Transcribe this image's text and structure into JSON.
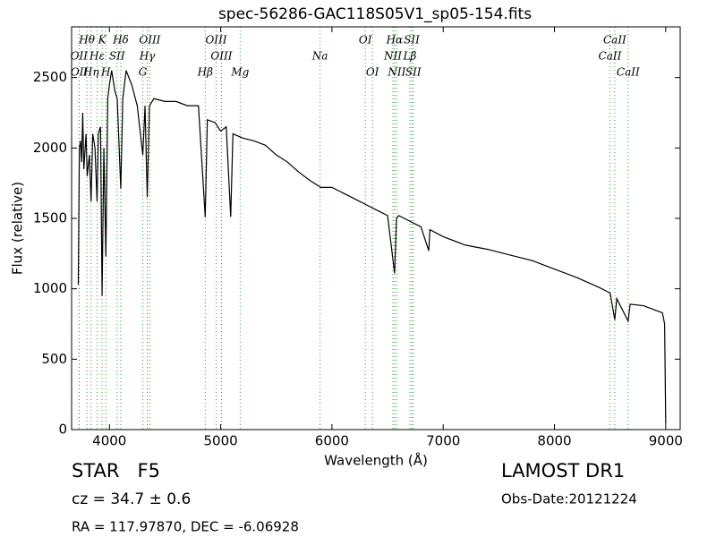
{
  "chart_data": {
    "type": "line",
    "title": "spec-56286-GAC118S05V1_sp05-154.fits",
    "x_label": "Wavelength (Å)",
    "y_label": "Flux (relative)",
    "xlim": [
      3660,
      9130
    ],
    "ylim": [
      0,
      2860
    ],
    "xticks": [
      4000,
      5000,
      6000,
      7000,
      8000,
      9000
    ],
    "yticks": [
      0,
      500,
      1000,
      1500,
      2000,
      2500
    ],
    "series": [
      {
        "name": "spectrum",
        "color": "#000000",
        "x": [
          3720,
          3730,
          3740,
          3750,
          3760,
          3770,
          3790,
          3800,
          3820,
          3835,
          3850,
          3870,
          3889,
          3900,
          3920,
          3934,
          3950,
          3968,
          3985,
          4000,
          4020,
          4050,
          4070,
          4102,
          4120,
          4150,
          4200,
          4250,
          4300,
          4320,
          4340,
          4360,
          4400,
          4500,
          4600,
          4700,
          4800,
          4861,
          4880,
          4950,
          5000,
          5050,
          5090,
          5110,
          5200,
          5300,
          5400,
          5500,
          5600,
          5700,
          5800,
          5900,
          6000,
          6100,
          6200,
          6300,
          6400,
          6500,
          6563,
          6580,
          6600,
          6700,
          6800,
          6870,
          6880,
          7000,
          7200,
          7400,
          7600,
          7800,
          8000,
          8200,
          8400,
          8500,
          8542,
          8560,
          8662,
          8680,
          8800,
          8900,
          8970,
          8990,
          9000
        ],
        "values": [
          1030,
          2000,
          2050,
          1900,
          2250,
          1850,
          2100,
          1800,
          1950,
          1620,
          2100,
          2000,
          1620,
          2100,
          2150,
          950,
          2000,
          1230,
          2350,
          2450,
          2550,
          2400,
          2350,
          1710,
          2350,
          2550,
          2450,
          2300,
          1950,
          2300,
          1650,
          2300,
          2350,
          2330,
          2330,
          2300,
          2300,
          1510,
          2200,
          2180,
          2120,
          2150,
          1510,
          2100,
          2070,
          2050,
          2020,
          1950,
          1900,
          1830,
          1770,
          1720,
          1720,
          1680,
          1640,
          1600,
          1560,
          1520,
          1110,
          1500,
          1520,
          1480,
          1440,
          1270,
          1420,
          1370,
          1310,
          1280,
          1240,
          1200,
          1140,
          1080,
          1010,
          970,
          780,
          930,
          770,
          890,
          880,
          850,
          830,
          750,
          40
        ]
      }
    ],
    "spectral_lines": [
      [
        {
          "label": "Hθ",
          "wavelength": 3798
        },
        {
          "label": "K",
          "wavelength": 3934
        },
        {
          "label": "Hδ",
          "wavelength": 4102
        },
        {
          "label": "OIII",
          "wavelength": 4363
        },
        {
          "label": "OIII",
          "wavelength": 4959
        },
        {
          "label": "OI",
          "wavelength": 6300
        },
        {
          "label": "Hα",
          "wavelength": 6563
        },
        {
          "label": "SII",
          "wavelength": 6717
        },
        {
          "label": "CaII",
          "wavelength": 8542
        }
      ],
      [
        {
          "label": "OII",
          "wavelength": 3727
        },
        {
          "label": "Hε",
          "wavelength": 3889
        },
        {
          "label": "SII",
          "wavelength": 4068
        },
        {
          "label": "Hγ",
          "wavelength": 4340
        },
        {
          "label": "OIII",
          "wavelength": 5007
        },
        {
          "label": "Na",
          "wavelength": 5893
        },
        {
          "label": "NII",
          "wavelength": 6548
        },
        {
          "label": "Lβ",
          "wavelength": 6700
        },
        {
          "label": "CaII",
          "wavelength": 8498
        }
      ],
      [
        {
          "label": "OII",
          "wavelength": 3729
        },
        {
          "label": "Hη",
          "wavelength": 3835
        },
        {
          "label": "H",
          "wavelength": 3968
        },
        {
          "label": "G",
          "wavelength": 4300
        },
        {
          "label": "Hβ",
          "wavelength": 4861
        },
        {
          "label": "Mg",
          "wavelength": 5175
        },
        {
          "label": "OI",
          "wavelength": 6364
        },
        {
          "label": "NII",
          "wavelength": 6583
        },
        {
          "label": "SII",
          "wavelength": 6731
        },
        {
          "label": "CaII",
          "wavelength": 8662
        }
      ]
    ],
    "object_class": "STAR   F5",
    "survey": "LAMOST DR1",
    "redshift": "cz = 34.7 ± 0.6",
    "obs_date": "Obs-Date:20121224",
    "coordinates": "RA = 117.97870, DEC = -6.06928"
  }
}
